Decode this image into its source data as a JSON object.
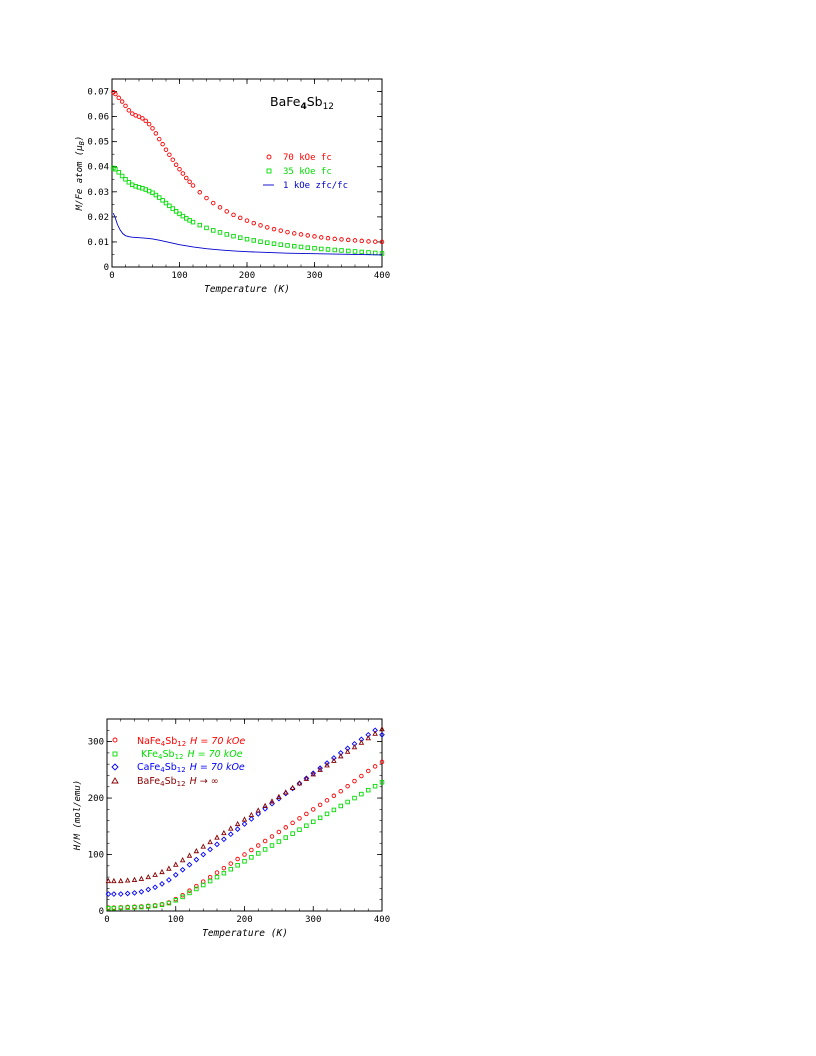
{
  "chart_data": [
    {
      "type": "scatter",
      "title": "",
      "annotation_main": "BaFe",
      "annotation_sub1": "4",
      "annotation_mid": "Sb",
      "annotation_sub2": "12",
      "xlabel": "Temperature (K)",
      "ylabel_main": "M/Fe atom (μ",
      "ylabel_sub": "B",
      "ylabel_end": ")",
      "xlim": [
        0,
        400
      ],
      "ylim": [
        0,
        0.075
      ],
      "xticks": [
        "0",
        "100",
        "200",
        "300",
        "400"
      ],
      "yticks": [
        "0",
        "0.01",
        "0.02",
        "0.03",
        "0.04",
        "0.05",
        "0.06",
        "0.07"
      ],
      "legend_position": "right",
      "series": [
        {
          "name": "70 kOe fc",
          "marker": "circle",
          "color": "#ff0000",
          "x": [
            2,
            5,
            10,
            15,
            20,
            25,
            30,
            35,
            40,
            45,
            50,
            55,
            60,
            65,
            70,
            75,
            80,
            85,
            90,
            95,
            100,
            105,
            110,
            115,
            120,
            130,
            140,
            150,
            160,
            170,
            180,
            190,
            200,
            210,
            220,
            230,
            240,
            250,
            260,
            270,
            280,
            290,
            300,
            310,
            320,
            330,
            340,
            350,
            360,
            370,
            380,
            390,
            400
          ],
          "y": [
            0.0697,
            0.069,
            0.0675,
            0.066,
            0.0643,
            0.0625,
            0.0612,
            0.0605,
            0.06,
            0.0593,
            0.0583,
            0.057,
            0.0553,
            0.0533,
            0.051,
            0.049,
            0.0468,
            0.0448,
            0.0428,
            0.0408,
            0.039,
            0.0373,
            0.0355,
            0.034,
            0.0325,
            0.0298,
            0.0275,
            0.0255,
            0.0238,
            0.0222,
            0.0208,
            0.0196,
            0.0185,
            0.0175,
            0.0166,
            0.0158,
            0.0151,
            0.0145,
            0.0139,
            0.0134,
            0.013,
            0.0126,
            0.0122,
            0.0118,
            0.0115,
            0.0112,
            0.011,
            0.0108,
            0.0106,
            0.0104,
            0.0102,
            0.0101,
            0.01
          ]
        },
        {
          "name": "35 kOe fc",
          "marker": "square",
          "color": "#00dd00",
          "x": [
            2,
            5,
            10,
            15,
            20,
            25,
            30,
            35,
            40,
            45,
            50,
            55,
            60,
            65,
            70,
            75,
            80,
            85,
            90,
            95,
            100,
            105,
            110,
            115,
            120,
            130,
            140,
            150,
            160,
            170,
            180,
            190,
            200,
            210,
            220,
            230,
            240,
            250,
            260,
            270,
            280,
            290,
            300,
            310,
            320,
            330,
            340,
            350,
            360,
            370,
            380,
            390,
            400
          ],
          "y": [
            0.0395,
            0.039,
            0.0378,
            0.0363,
            0.035,
            0.0338,
            0.0328,
            0.0322,
            0.0318,
            0.0314,
            0.0309,
            0.0303,
            0.0296,
            0.0287,
            0.0277,
            0.0266,
            0.0255,
            0.0244,
            0.0233,
            0.0222,
            0.0212,
            0.0203,
            0.0194,
            0.0186,
            0.0179,
            0.0167,
            0.0156,
            0.0146,
            0.0138,
            0.013,
            0.0123,
            0.0117,
            0.0111,
            0.0106,
            0.0101,
            0.0097,
            0.0093,
            0.0089,
            0.0086,
            0.0083,
            0.008,
            0.0077,
            0.0075,
            0.0072,
            0.007,
            0.0068,
            0.0066,
            0.0064,
            0.0062,
            0.006,
            0.0058,
            0.0056,
            0.0054
          ]
        },
        {
          "name": "1 kOe zfc/fc",
          "marker": "line",
          "color": "#0000cc",
          "x": [
            2,
            5,
            8,
            12,
            16,
            20,
            25,
            30,
            40,
            50,
            60,
            70,
            80,
            90,
            100,
            120,
            140,
            160,
            180,
            200,
            220,
            240,
            260,
            280,
            300,
            320,
            340,
            360,
            380,
            400
          ],
          "y": [
            0.0215,
            0.0195,
            0.017,
            0.0148,
            0.0133,
            0.0125,
            0.0121,
            0.0119,
            0.0117,
            0.0115,
            0.0112,
            0.0107,
            0.0101,
            0.0095,
            0.0089,
            0.008,
            0.0073,
            0.0068,
            0.0064,
            0.0061,
            0.0059,
            0.0057,
            0.0055,
            0.0054,
            0.0053,
            0.0052,
            0.0051,
            0.005,
            0.0049,
            0.0048
          ]
        }
      ]
    },
    {
      "type": "scatter",
      "title": "",
      "xlabel": "Temperature (K)",
      "ylabel": "H/M (mol/emu)",
      "xlim": [
        0,
        400
      ],
      "ylim": [
        0,
        340
      ],
      "xticks": [
        "0",
        "100",
        "200",
        "300",
        "400"
      ],
      "yticks": [
        "0",
        "100",
        "200",
        "300"
      ],
      "legend_position": "top-left",
      "series": [
        {
          "name_main": "NaFe",
          "name_sub1": "4",
          "name_mid": "Sb",
          "name_sub2": "12",
          "field": "H = 70 kOe",
          "marker": "circle",
          "color": "#ff0000",
          "x": [
            2,
            10,
            20,
            30,
            40,
            50,
            60,
            70,
            80,
            90,
            100,
            110,
            120,
            130,
            140,
            150,
            160,
            170,
            180,
            190,
            200,
            210,
            220,
            230,
            240,
            250,
            260,
            270,
            280,
            290,
            300,
            310,
            320,
            330,
            340,
            350,
            360,
            370,
            380,
            390,
            400
          ],
          "y": [
            6,
            6,
            6.5,
            7,
            7.5,
            8,
            9,
            10,
            12,
            15,
            21,
            28,
            36,
            44,
            52,
            60,
            68,
            76,
            84,
            92,
            100,
            108,
            116,
            124,
            132,
            140,
            148,
            156,
            164,
            172,
            180,
            188,
            196,
            204,
            212,
            221,
            230,
            239,
            248,
            256,
            264
          ]
        },
        {
          "name_main": "KFe",
          "name_sub1": "4",
          "name_mid": "Sb",
          "name_sub2": "12",
          "field": "H = 70 kOe",
          "marker": "square",
          "color": "#00dd00",
          "x": [
            2,
            10,
            20,
            30,
            40,
            50,
            60,
            70,
            80,
            90,
            100,
            110,
            120,
            130,
            140,
            150,
            160,
            170,
            180,
            190,
            200,
            210,
            220,
            230,
            240,
            250,
            260,
            270,
            280,
            290,
            300,
            310,
            320,
            330,
            340,
            350,
            360,
            370,
            380,
            390,
            400
          ],
          "y": [
            5,
            5,
            5.5,
            6,
            6.5,
            7,
            8,
            9,
            11,
            14,
            19,
            25,
            32,
            39,
            46,
            53,
            60,
            67,
            74,
            81,
            88,
            95,
            102,
            109,
            116,
            123,
            130,
            137,
            144,
            151,
            158,
            165,
            172,
            179,
            186,
            193,
            200,
            207,
            214,
            221,
            228
          ]
        },
        {
          "name_main": "CaFe",
          "name_sub1": "4",
          "name_mid": "Sb",
          "name_sub2": "12",
          "field": "H = 70 kOe",
          "marker": "diamond",
          "color": "#0000ff",
          "x": [
            2,
            10,
            20,
            30,
            40,
            50,
            60,
            70,
            80,
            90,
            100,
            110,
            120,
            130,
            140,
            150,
            160,
            170,
            180,
            190,
            200,
            210,
            220,
            230,
            240,
            250,
            260,
            270,
            280,
            290,
            300,
            310,
            320,
            330,
            340,
            350,
            360,
            370,
            380,
            390,
            400
          ],
          "y": [
            30,
            30,
            30,
            31,
            32,
            34,
            38,
            42,
            48,
            55,
            64,
            73,
            82,
            91,
            100,
            109,
            118,
            127,
            136,
            145,
            154,
            163,
            172,
            181,
            190,
            199,
            208,
            217,
            226,
            235,
            244,
            253,
            262,
            271,
            280,
            288,
            296,
            304,
            312,
            320,
            312
          ]
        },
        {
          "name_main": "BaFe",
          "name_sub1": "4",
          "name_mid": "Sb",
          "name_sub2": "12",
          "field": "H → ∞",
          "marker": "triangle",
          "color": "#880000",
          "x": [
            2,
            10,
            20,
            30,
            40,
            50,
            60,
            70,
            80,
            90,
            100,
            110,
            120,
            130,
            140,
            150,
            160,
            170,
            180,
            190,
            200,
            210,
            220,
            230,
            240,
            250,
            260,
            270,
            280,
            290,
            300,
            310,
            320,
            330,
            340,
            350,
            360,
            370,
            380,
            390,
            400
          ],
          "y": [
            53,
            53,
            53,
            54,
            55,
            57,
            60,
            64,
            69,
            75,
            82,
            90,
            98,
            106,
            114,
            122,
            130,
            138,
            146,
            154,
            162,
            170,
            178,
            186,
            194,
            202,
            210,
            218,
            226,
            234,
            242,
            250,
            258,
            266,
            274,
            282,
            290,
            298,
            306,
            314,
            322
          ]
        }
      ]
    }
  ]
}
